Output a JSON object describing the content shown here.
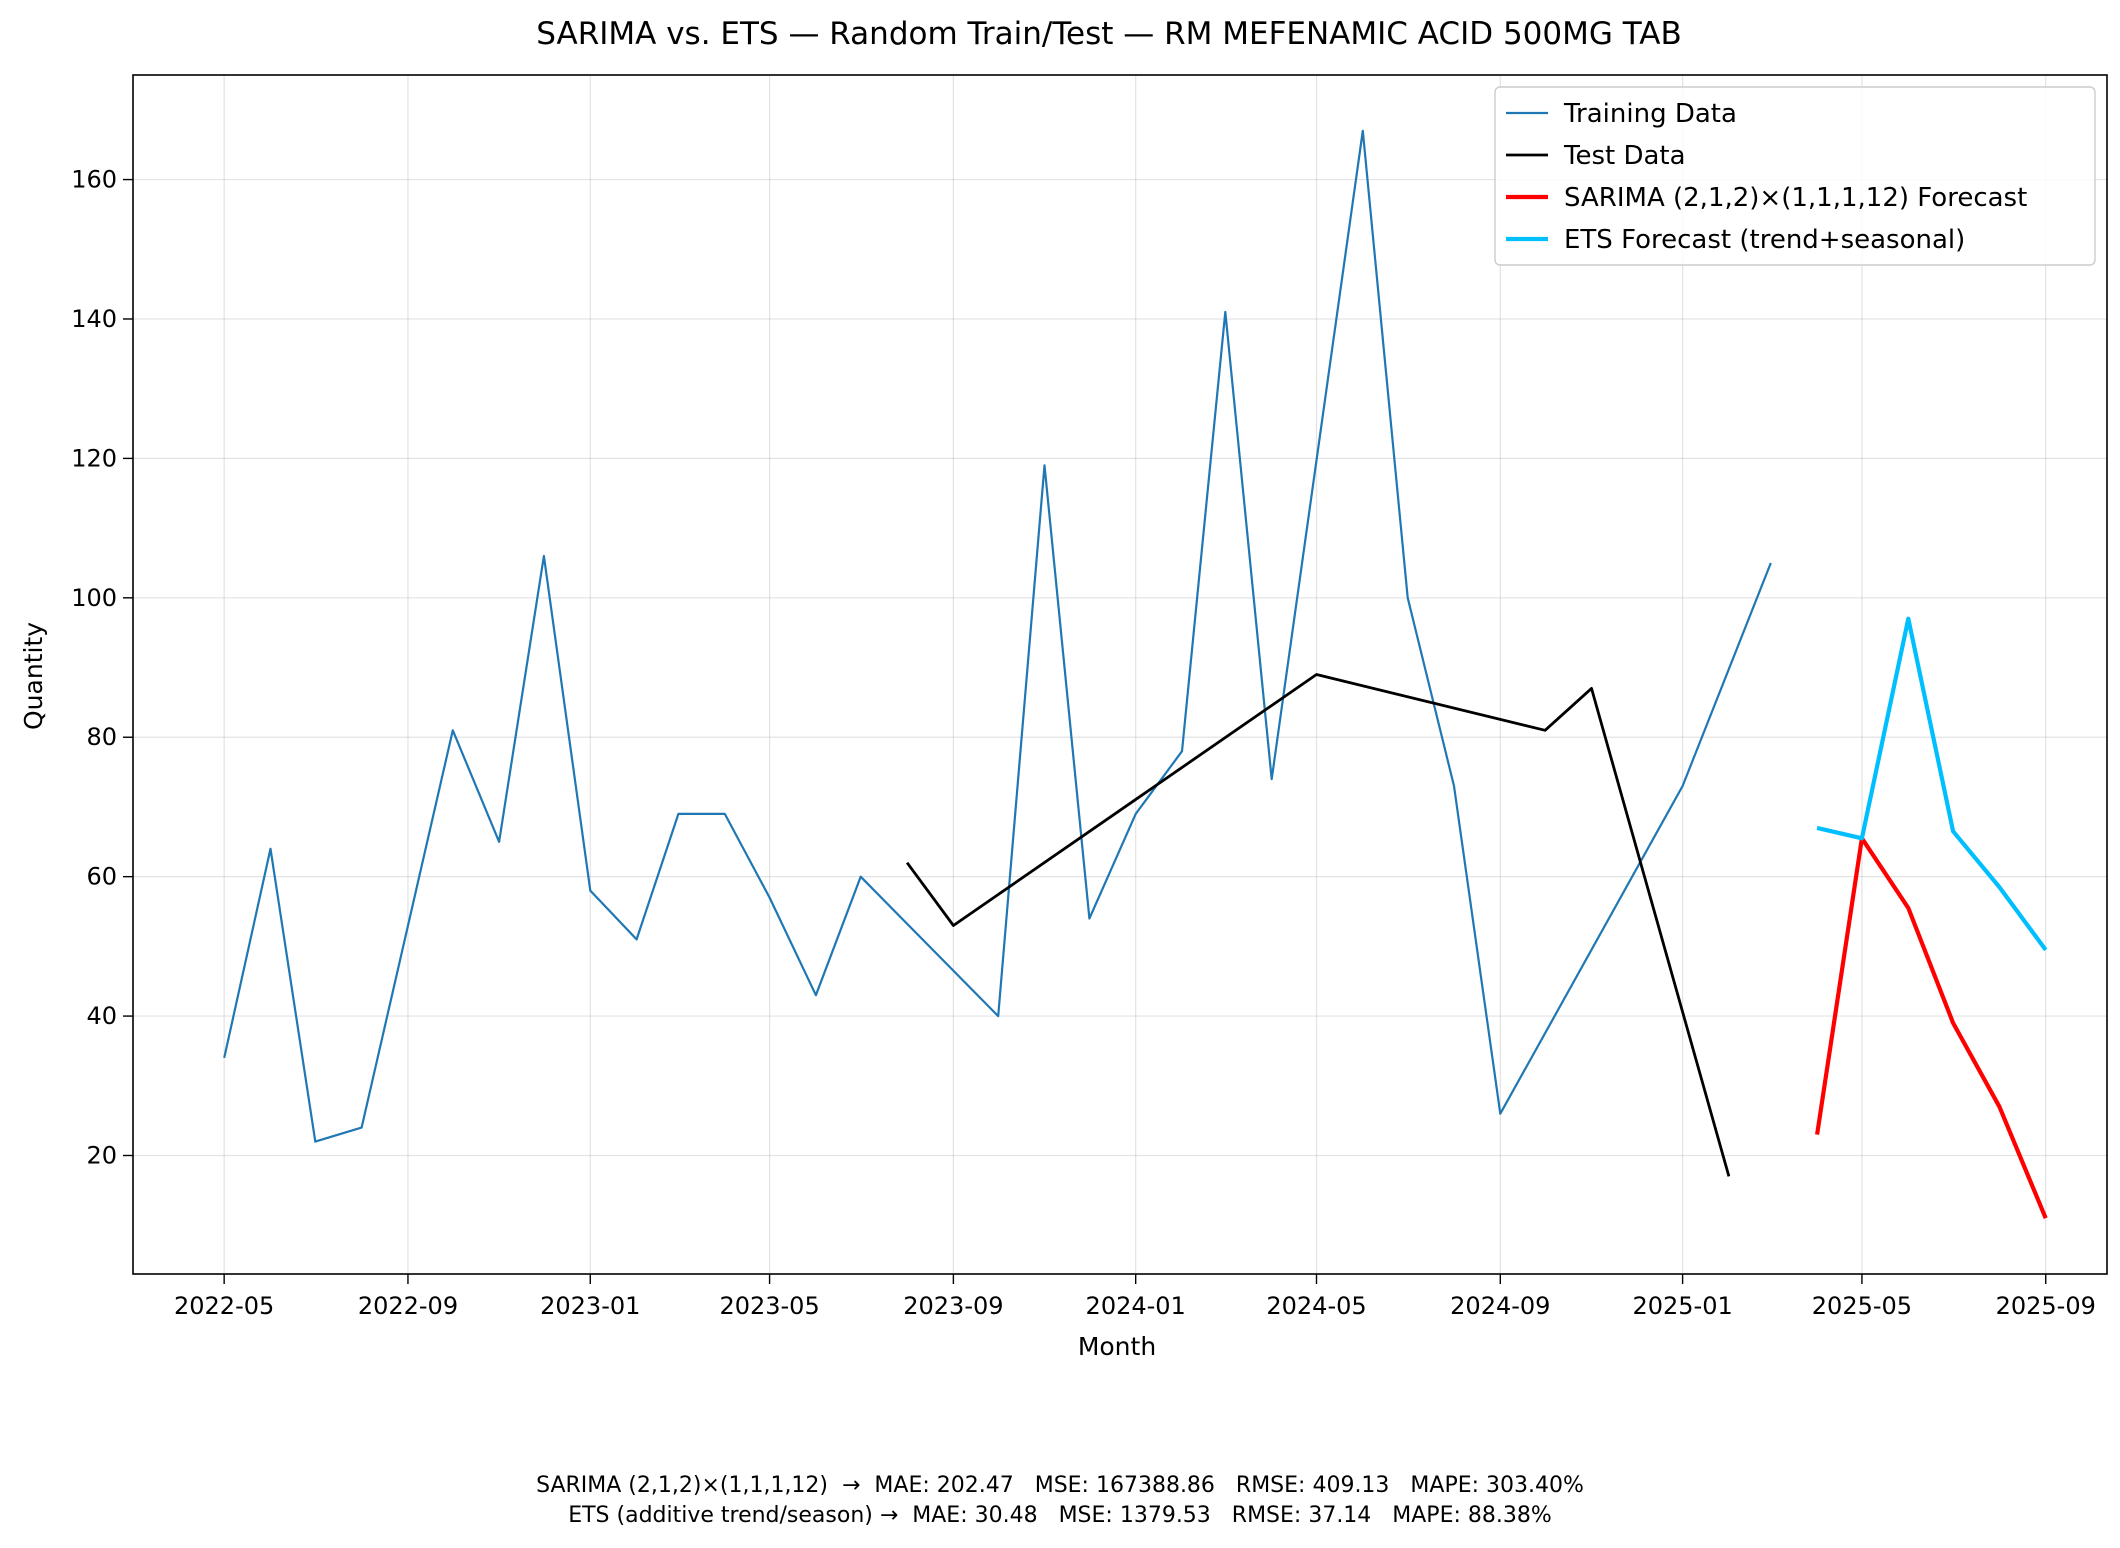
{
  "chart_data": {
    "type": "line",
    "title": "SARIMA vs. ETS — Random Train/Test — RM MEFENAMIC ACID 500MG TAB",
    "xlabel": "Month",
    "ylabel": "Quantity",
    "xlim": [
      "2022-03-01",
      "2025-10-12"
    ],
    "ylim": [
      3,
      175
    ],
    "grid": true,
    "legend_position": "top-right",
    "x_ticks": [
      "2022-05",
      "2022-09",
      "2023-01",
      "2023-05",
      "2023-09",
      "2024-01",
      "2024-05",
      "2024-09",
      "2025-01",
      "2025-05",
      "2025-09"
    ],
    "y_ticks": [
      20,
      40,
      60,
      80,
      100,
      120,
      140,
      160
    ],
    "series": [
      {
        "name": "Training Data",
        "color": "#1f77b4",
        "x": [
          "2022-05",
          "2022-06",
          "2022-07",
          "2022-08",
          "2022-09",
          "2022-10",
          "2022-11",
          "2022-12",
          "2023-01",
          "2023-02",
          "2023-03",
          "2023-04",
          "2023-05",
          "2023-06",
          "2023-07",
          "2023-10",
          "2023-11",
          "2023-12",
          "2024-01",
          "2024-02",
          "2024-03",
          "2024-04",
          "2024-06",
          "2024-07",
          "2024-08",
          "2024-09",
          "2025-01",
          "2025-03"
        ],
        "y": [
          34,
          64,
          22,
          24,
          53,
          81,
          65,
          106,
          58,
          51,
          69,
          69,
          57,
          43,
          60,
          40,
          119,
          54,
          69,
          78,
          141,
          74,
          167,
          100,
          73,
          26,
          73,
          105
        ]
      },
      {
        "name": "Test Data",
        "color": "#000000",
        "x": [
          "2023-08",
          "2023-09",
          "2024-05",
          "2024-10",
          "2024-11",
          "2025-02"
        ],
        "y": [
          62,
          53,
          89,
          81,
          87,
          17
        ]
      },
      {
        "name": "SARIMA (2,1,2)×(1,1,1,12) Forecast",
        "color": "#ff0000",
        "x": [
          "2025-04",
          "2025-05",
          "2025-06",
          "2025-07",
          "2025-08",
          "2025-09"
        ],
        "y": [
          23,
          65.5,
          55.5,
          39,
          27,
          11
        ]
      },
      {
        "name": "ETS Forecast (trend+seasonal)",
        "color": "#00bfff",
        "x": [
          "2025-04",
          "2025-05",
          "2025-06",
          "2025-07",
          "2025-08",
          "2025-09"
        ],
        "y": [
          67,
          65.5,
          97,
          66.5,
          58.5,
          49.5
        ]
      }
    ]
  },
  "metrics": {
    "sarima_line": "SARIMA (2,1,2)×(1,1,1,12)  →  MAE: 202.47   MSE: 167388.86   RMSE: 409.13   MAPE: 303.40%",
    "ets_line": "ETS (additive trend/season) →  MAE: 30.48   MSE: 1379.53   RMSE: 37.14   MAPE: 88.38%"
  }
}
